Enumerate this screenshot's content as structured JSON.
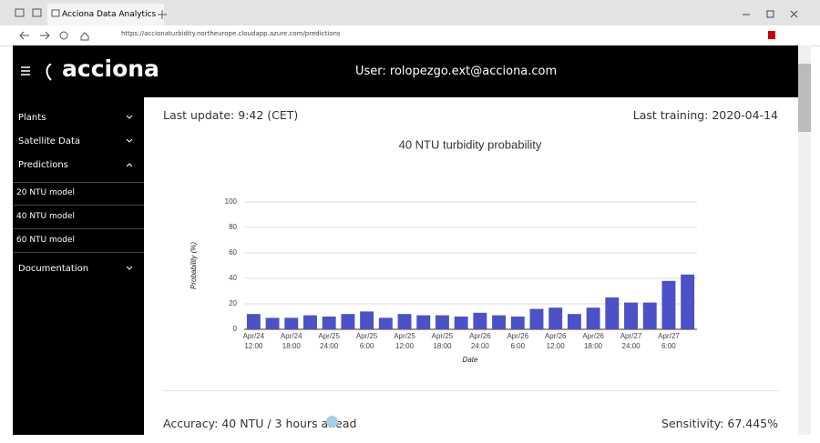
{
  "browser": {
    "tab_title": "Acciona Data Analytics",
    "url": "https://accionaturbidity.northeurope.cloudapp.azure.com/predictions"
  },
  "header": {
    "logo": "acciona",
    "user": "User: rolopezgo.ext@acciona.com"
  },
  "sidebar": {
    "items": [
      "Plants",
      "Satellite Data",
      "Predictions"
    ],
    "submenu": [
      "20 NTU model",
      "40 NTU model",
      "60 NTU model"
    ],
    "footer_item": "Documentation"
  },
  "content": {
    "last_update": "Last update:  9:42 (CET)",
    "last_training": "Last training:  2020-04-14",
    "accuracy": "Accuracy:  40 NTU / 3 hours ahead",
    "sensitivity": "Sensitivity:  67.445%"
  },
  "chart_data": {
    "type": "bar",
    "title": "40 NTU turbidity probability",
    "x_label": "Date",
    "y_label": "Probability (%)",
    "categories": [
      "Apr/24\n12:00",
      null,
      "Apr/24\n18:00",
      null,
      "Apr/25\n24:00",
      null,
      "Apr/25\n6:00",
      null,
      "Apr/25\n12:00",
      null,
      "Apr/25\n18:00",
      null,
      "Apr/26\n24:00",
      null,
      "Apr/26\n6:00",
      null,
      "Apr/26\n12:00",
      null,
      "Apr/26\n18:00",
      null,
      "Apr/27\n24:00",
      null,
      "Apr/27\n6:00",
      null
    ],
    "values": [
      12,
      9,
      9,
      11,
      10,
      12,
      14,
      9,
      12,
      11,
      11,
      10,
      13,
      11,
      10,
      16,
      17,
      12,
      17,
      25,
      21,
      21,
      38,
      43
    ],
    "color": "#4d51c7",
    "ylim": [
      0,
      100
    ],
    "yticks": [
      0,
      20,
      40,
      60,
      80,
      100
    ],
    "grid": true
  }
}
